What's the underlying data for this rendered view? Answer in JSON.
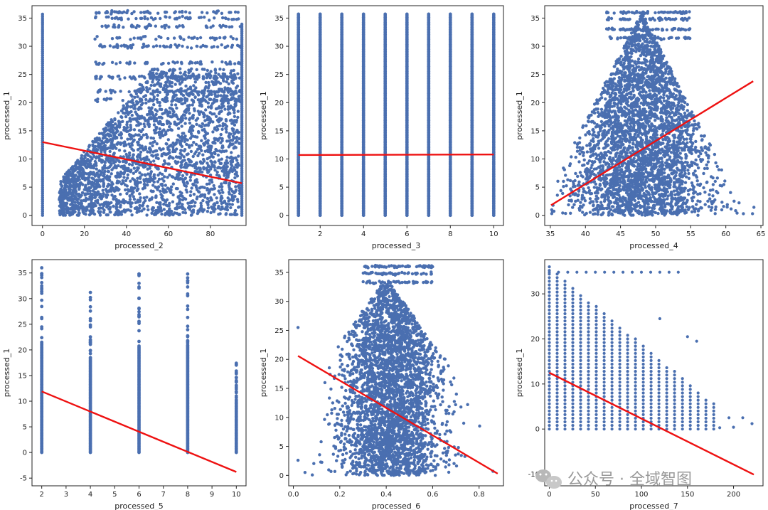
{
  "point_color": "#4a6fb0",
  "fit_color": "#ee1111",
  "watermark": {
    "text": "公众号 · 全域智图"
  },
  "chart_data": [
    {
      "type": "scatter",
      "xlabel": "processed_2",
      "ylabel": "processed_1",
      "xlim": [
        -5,
        97
      ],
      "ylim": [
        -1.8,
        37.2
      ],
      "xticks": [
        0,
        20,
        40,
        60,
        80
      ],
      "yticks": [
        0,
        5,
        10,
        15,
        20,
        25,
        30,
        35
      ],
      "fit_line": {
        "x": [
          0,
          95
        ],
        "y": [
          13.0,
          5.7
        ]
      }
    },
    {
      "type": "scatter",
      "xlabel": "processed_3",
      "ylabel": "processed_1",
      "xlim": [
        0.55,
        10.45
      ],
      "ylim": [
        -1.8,
        37.2
      ],
      "xticks": [
        2,
        4,
        6,
        8,
        10
      ],
      "yticks": [
        0,
        5,
        10,
        15,
        20,
        25,
        30,
        35
      ],
      "x_levels": [
        1,
        2,
        3,
        4,
        5,
        6,
        7,
        8,
        9,
        10
      ],
      "fit_line": {
        "x": [
          1,
          10
        ],
        "y": [
          10.7,
          10.8
        ]
      }
    },
    {
      "type": "scatter",
      "xlabel": "processed_4",
      "ylabel": "processed_1",
      "xlim": [
        34.2,
        65.3
      ],
      "ylim": [
        -1.8,
        37.2
      ],
      "xticks": [
        35,
        40,
        45,
        50,
        55,
        60,
        65
      ],
      "yticks": [
        0,
        5,
        10,
        15,
        20,
        25,
        30,
        35
      ],
      "fit_line": {
        "x": [
          35.1,
          63.9
        ],
        "y": [
          1.8,
          23.8
        ]
      }
    },
    {
      "type": "scatter",
      "xlabel": "processed_5",
      "ylabel": "processed_1",
      "xlim": [
        1.6,
        10.4
      ],
      "ylim": [
        -6.5,
        37.6
      ],
      "xticks": [
        2,
        3,
        4,
        5,
        6,
        7,
        8,
        9,
        10
      ],
      "yticks": [
        -5,
        0,
        5,
        10,
        15,
        20,
        25,
        30,
        35
      ],
      "x_levels": [
        2,
        4,
        6,
        8,
        10
      ],
      "level_max": [
        36.0,
        31.2,
        34.8,
        34.8,
        17.4
      ],
      "fit_line": {
        "x": [
          2,
          10
        ],
        "y": [
          11.9,
          -3.8
        ]
      }
    },
    {
      "type": "scatter",
      "xlabel": "processed_6",
      "ylabel": "processed_1",
      "xlim": [
        -0.02,
        0.905
      ],
      "ylim": [
        -1.8,
        37.2
      ],
      "xticks": [
        0.0,
        0.2,
        0.4,
        0.6,
        0.8
      ],
      "yticks": [
        0,
        5,
        10,
        15,
        20,
        25,
        30,
        35
      ],
      "fit_line": {
        "x": [
          0.02,
          0.88
        ],
        "y": [
          20.6,
          0.3
        ]
      }
    },
    {
      "type": "scatter",
      "xlabel": "processed_7",
      "ylabel": "processed_1",
      "xlim": [
        -5,
        232
      ],
      "ylim": [
        -12.6,
        37.6
      ],
      "xticks": [
        0,
        50,
        100,
        150,
        200
      ],
      "yticks": [
        -10,
        0,
        10,
        20,
        30
      ],
      "fit_line": {
        "x": [
          0,
          222
        ],
        "y": [
          12.5,
          -10.1
        ]
      }
    }
  ]
}
